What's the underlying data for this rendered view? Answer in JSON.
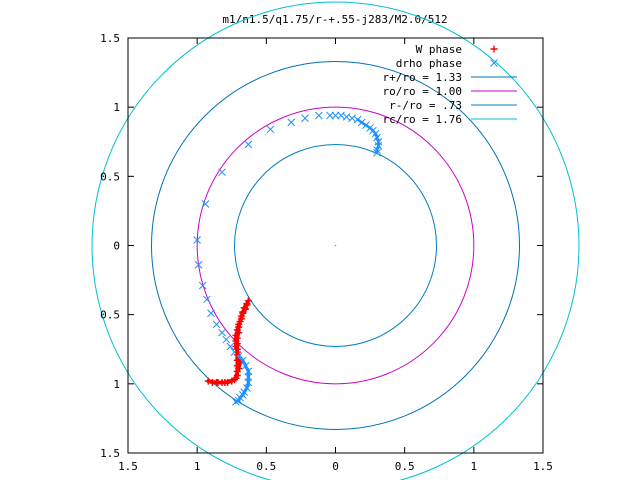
{
  "chart_data": {
    "type": "scatter",
    "title": "m1/n1.5/q1.75/r-+.55-j283/M2.0/512",
    "xlim": [
      -1.5,
      1.5
    ],
    "ylim": [
      -1.5,
      1.5
    ],
    "x_ticks": [
      -1.5,
      -1,
      -0.5,
      0,
      0.5,
      1,
      1.5
    ],
    "y_ticks": [
      1.5,
      1,
      0.5,
      0,
      -0.5,
      -1,
      -1.5
    ],
    "x_tick_labels": [
      "1.5",
      "1",
      "0.5",
      "0",
      "0.5",
      "1",
      "1.5"
    ],
    "y_tick_labels": [
      "1.5",
      "1",
      "0.5",
      "0",
      "0.5",
      "1",
      "1.5"
    ],
    "grid": false,
    "legend_position": "top-right",
    "center_point": [
      0,
      0
    ],
    "series": [
      {
        "name": "W phase",
        "marker": "+",
        "color": "#ff0000",
        "points": [
          [
            -0.63,
            -0.4
          ],
          [
            -0.64,
            -0.42
          ],
          [
            -0.66,
            -0.45
          ],
          [
            -0.67,
            -0.48
          ],
          [
            -0.68,
            -0.51
          ],
          [
            -0.69,
            -0.55
          ],
          [
            -0.7,
            -0.59
          ],
          [
            -0.7,
            -0.63
          ],
          [
            -0.71,
            -0.67
          ],
          [
            -0.71,
            -0.71
          ],
          [
            -0.71,
            -0.75
          ],
          [
            -0.71,
            -0.79
          ],
          [
            -0.71,
            -0.83
          ],
          [
            -0.71,
            -0.87
          ],
          [
            -0.71,
            -0.91
          ],
          [
            -0.71,
            -0.94
          ],
          [
            -0.72,
            -0.96
          ],
          [
            -0.75,
            -0.98
          ],
          [
            -0.78,
            -0.99
          ],
          [
            -0.82,
            -0.99
          ],
          [
            -0.86,
            -0.99
          ],
          [
            -0.89,
            -0.99
          ],
          [
            -0.92,
            -0.98
          ],
          [
            -0.85,
            -0.99
          ],
          [
            -0.8,
            -0.99
          ],
          [
            -0.73,
            -0.97
          ],
          [
            -0.7,
            -0.89
          ],
          [
            -0.69,
            -0.85
          ],
          [
            -0.7,
            -0.81
          ],
          [
            -0.71,
            -0.77
          ],
          [
            -0.72,
            -0.73
          ],
          [
            -0.72,
            -0.69
          ],
          [
            -0.72,
            -0.65
          ],
          [
            -0.71,
            -0.61
          ],
          [
            -0.7,
            -0.57
          ],
          [
            -0.68,
            -0.53
          ],
          [
            -0.67,
            -0.49
          ],
          [
            -0.65,
            -0.46
          ],
          [
            -0.64,
            -0.43
          ]
        ]
      },
      {
        "name": "drho phase",
        "marker": "x",
        "color": "#1e90ff",
        "points": [
          [
            -1.0,
            0.04
          ],
          [
            -0.99,
            -0.14
          ],
          [
            -0.96,
            -0.29
          ],
          [
            -0.93,
            -0.39
          ],
          [
            -0.9,
            -0.49
          ],
          [
            -0.86,
            -0.57
          ],
          [
            -0.82,
            -0.63
          ],
          [
            -0.79,
            -0.68
          ],
          [
            -0.76,
            -0.73
          ],
          [
            -0.73,
            -0.77
          ],
          [
            -0.7,
            -0.8
          ],
          [
            -0.67,
            -0.83
          ],
          [
            -0.65,
            -0.87
          ],
          [
            -0.63,
            -0.91
          ],
          [
            -0.63,
            -0.95
          ],
          [
            -0.63,
            -0.99
          ],
          [
            -0.64,
            -1.03
          ],
          [
            -0.66,
            -1.06
          ],
          [
            -0.67,
            -1.08
          ],
          [
            -0.69,
            -1.1
          ],
          [
            -0.7,
            -1.12
          ],
          [
            -0.72,
            -1.13
          ],
          [
            -0.94,
            0.3
          ],
          [
            -0.82,
            0.53
          ],
          [
            -0.63,
            0.73
          ],
          [
            -0.47,
            0.84
          ],
          [
            -0.32,
            0.89
          ],
          [
            -0.22,
            0.92
          ],
          [
            -0.12,
            0.94
          ],
          [
            -0.04,
            0.94
          ],
          [
            0.0,
            0.94
          ],
          [
            0.04,
            0.94
          ],
          [
            0.08,
            0.93
          ],
          [
            0.12,
            0.92
          ],
          [
            0.16,
            0.91
          ],
          [
            0.19,
            0.89
          ],
          [
            0.22,
            0.87
          ],
          [
            0.25,
            0.85
          ],
          [
            0.27,
            0.83
          ],
          [
            0.29,
            0.81
          ],
          [
            0.3,
            0.78
          ],
          [
            0.31,
            0.75
          ],
          [
            0.31,
            0.72
          ],
          [
            0.3,
            0.69
          ],
          [
            0.3,
            0.67
          ]
        ]
      },
      {
        "name": "r+/ro = 1.33",
        "type": "circle",
        "radius": 1.33,
        "color": "#0072b2"
      },
      {
        "name": "ro/ro = 1.00",
        "type": "circle",
        "radius": 1.0,
        "color": "#cc00cc"
      },
      {
        "name": "r-/ro =  .73",
        "type": "circle",
        "radius": 0.73,
        "color": "#0080c0"
      },
      {
        "name": "rc/ro = 1.76",
        "type": "circle",
        "radius": 1.76,
        "color": "#00c0d0"
      }
    ]
  }
}
